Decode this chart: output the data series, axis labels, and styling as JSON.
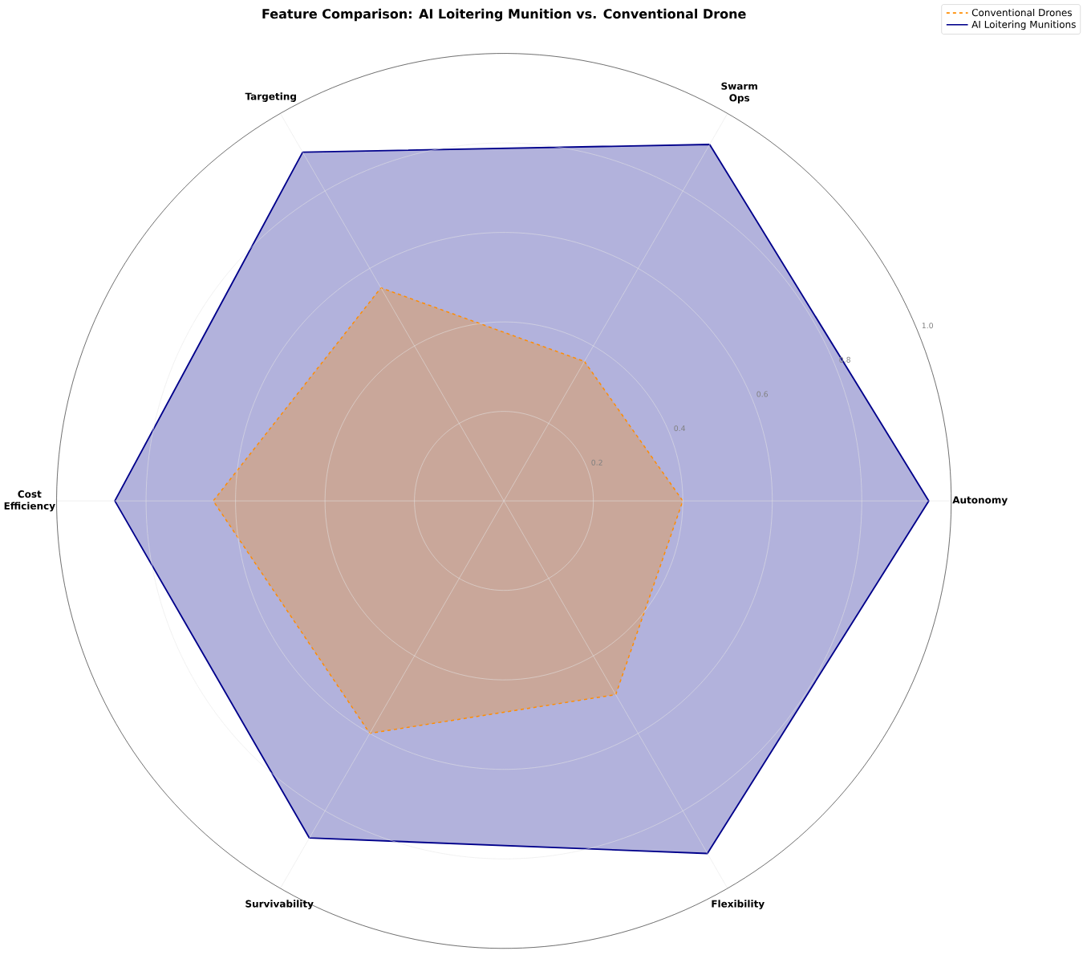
{
  "chart_data": {
    "type": "radar",
    "title": "Feature Comparison: AI Loitering Munition vs. Conventional Drone",
    "categories": [
      "Swarm Ops",
      "Autonomy",
      "Flexibility",
      "Survivability",
      "Cost Efficiency",
      "Targeting"
    ],
    "series": [
      {
        "name": "Conventional Drones",
        "color": "#ff8c00",
        "line_style": "dashed",
        "values": [
          0.36,
          0.4,
          0.5,
          0.6,
          0.65,
          0.55
        ]
      },
      {
        "name": "AI Loitering Munitions",
        "color": "#00008b",
        "line_style": "solid",
        "values": [
          0.92,
          0.95,
          0.91,
          0.87,
          0.87,
          0.9
        ]
      }
    ],
    "ylim": [
      0,
      1
    ],
    "yticks": [
      0.2,
      0.4,
      0.6,
      0.8,
      {
        "value": 1,
        "label": "1.0"
      }
    ],
    "grid": true,
    "legend": "top right"
  }
}
